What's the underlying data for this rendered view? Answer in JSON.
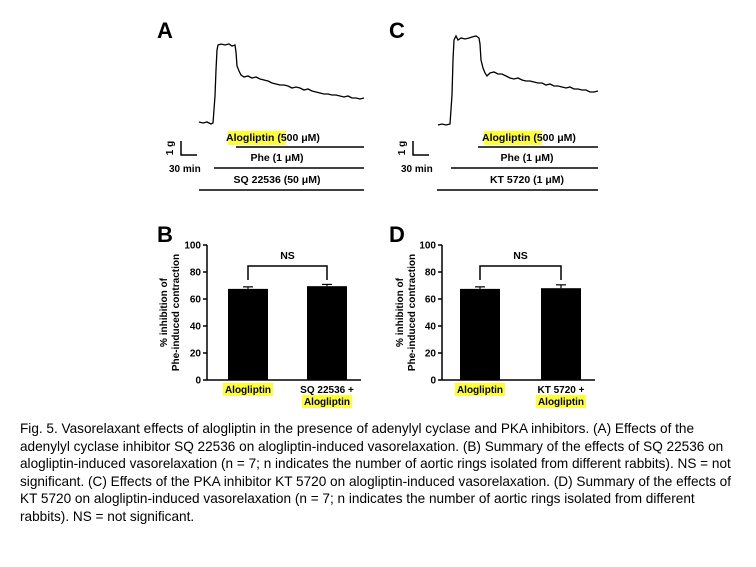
{
  "panels": {
    "A": {
      "letter": "A",
      "drug_label": "Alogliptin",
      "drug_conc": " (500 μM)",
      "phe_label": "Phe (1 μM)",
      "inhibitor_label": "SQ 22536 (50 μM)",
      "scale_y": "1 g",
      "scale_x": "30 min"
    },
    "C": {
      "letter": "C",
      "drug_label": "Alogliptin",
      "drug_conc": " (500 μM)",
      "phe_label": "Phe (1 μM)",
      "inhibitor_label": "KT 5720 (1 μM)",
      "scale_y": "1 g",
      "scale_x": "30 min"
    },
    "B": {
      "letter": "B"
    },
    "D": {
      "letter": "D"
    }
  },
  "highlight_color": "#ffff33",
  "bar_color": "#000000",
  "chart_data": [
    {
      "type": "bar",
      "panel": "B",
      "categories": [
        "Alogliptin",
        "SQ 22536 + Alogliptin"
      ],
      "category_lines": [
        [
          "Alogliptin"
        ],
        [
          "SQ 22536 +",
          "Alogliptin"
        ]
      ],
      "values": [
        67.5,
        69.5
      ],
      "errors": [
        1.5,
        1.3
      ],
      "ylabel_lines": [
        "% inhibition of",
        "Phe-induced contraction"
      ],
      "ylim": [
        0,
        100
      ],
      "yticks": [
        0,
        20,
        40,
        60,
        80,
        100
      ],
      "annotation": "NS"
    },
    {
      "type": "bar",
      "panel": "D",
      "categories": [
        "Alogliptin",
        "KT 5720 + Alogliptin"
      ],
      "category_lines": [
        [
          "Alogliptin"
        ],
        [
          "KT 5720 +",
          "Alogliptin"
        ]
      ],
      "values": [
        67.5,
        68
      ],
      "errors": [
        1.5,
        2.5
      ],
      "ylabel_lines": [
        "% inhibition of",
        "Phe-induced contraction"
      ],
      "ylim": [
        0,
        100
      ],
      "yticks": [
        0,
        20,
        40,
        60,
        80,
        100
      ],
      "annotation": "NS"
    }
  ],
  "caption": "Fig. 5. Vasorelaxant effects of alogliptin in the presence of adenylyl cyclase and PKA inhibitors. (A) Effects of the adenylyl cyclase inhibitor SQ 22536 on alogliptin-induced vasorelaxation. (B) Summary of the effects of SQ 22536 on alogliptin-induced vasorelaxation (n = 7; n indicates the number of aortic rings isolated from different rabbits). NS = not significant. (C) Effects of the PKA inhibitor KT 5720 on alogliptin-induced vasorelaxation. (D) Summary of the effects of KT 5720 on alogliptin-induced vasorelaxation (n = 7; n indicates the number of aortic rings isolated from different rabbits). NS = not significant."
}
